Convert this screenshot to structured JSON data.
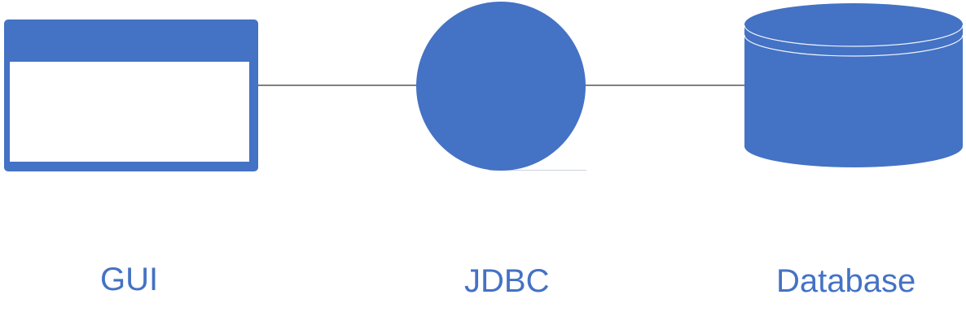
{
  "nodes": {
    "gui": {
      "label": "GUI",
      "icon": "window-icon"
    },
    "jdbc": {
      "label": "JDBC",
      "icon": "circle-node-icon"
    },
    "database": {
      "label": "Database",
      "icon": "database-cylinder-icon"
    }
  },
  "edges": [
    {
      "from": "gui",
      "to": "jdbc"
    },
    {
      "from": "jdbc",
      "to": "database"
    }
  ],
  "colors": {
    "shape_fill": "#4472c4",
    "label_text": "#4472c4",
    "connector": "#000000",
    "background": "#ffffff"
  }
}
